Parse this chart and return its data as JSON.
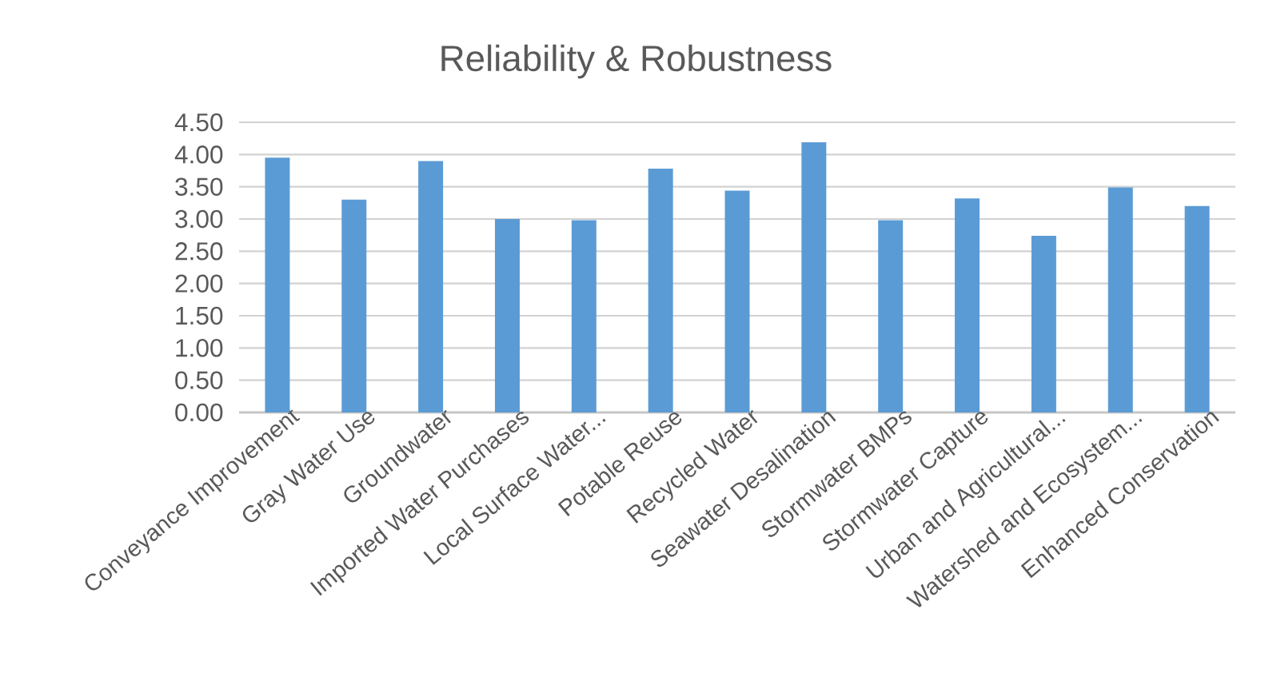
{
  "chart_data": {
    "type": "bar",
    "title": "Reliability & Robustness",
    "categories": [
      "Conveyance Improvement",
      "Gray Water Use",
      "Groundwater",
      "Imported Water Purchases",
      "Local Surface Water...",
      "Potable Reuse",
      "Recycled Water",
      "Seawater Desalination",
      "Stormwater BMPs",
      "Stormwater Capture",
      "Urban and Agricultural...",
      "Watershed and Ecosystem...",
      "Enhanced Conservation"
    ],
    "values": [
      3.95,
      3.3,
      3.9,
      3.0,
      2.98,
      3.78,
      3.44,
      4.19,
      2.98,
      3.32,
      2.74,
      3.49,
      3.2
    ],
    "color": "#5b9bd5",
    "ylim": [
      0,
      4.5
    ],
    "yticks": [
      {
        "value": 0,
        "label": "0.00"
      },
      {
        "value": 0.5,
        "label": "0.50"
      },
      {
        "value": 1,
        "label": "1.00"
      },
      {
        "value": 1.5,
        "label": "1.50"
      },
      {
        "value": 2,
        "label": "2.00"
      },
      {
        "value": 2.5,
        "label": "2.50"
      },
      {
        "value": 3,
        "label": "3.00"
      },
      {
        "value": 3.5,
        "label": "3.50"
      },
      {
        "value": 4,
        "label": "4.00"
      },
      {
        "value": 4.5,
        "label": "4.50"
      }
    ],
    "grid": "y"
  }
}
